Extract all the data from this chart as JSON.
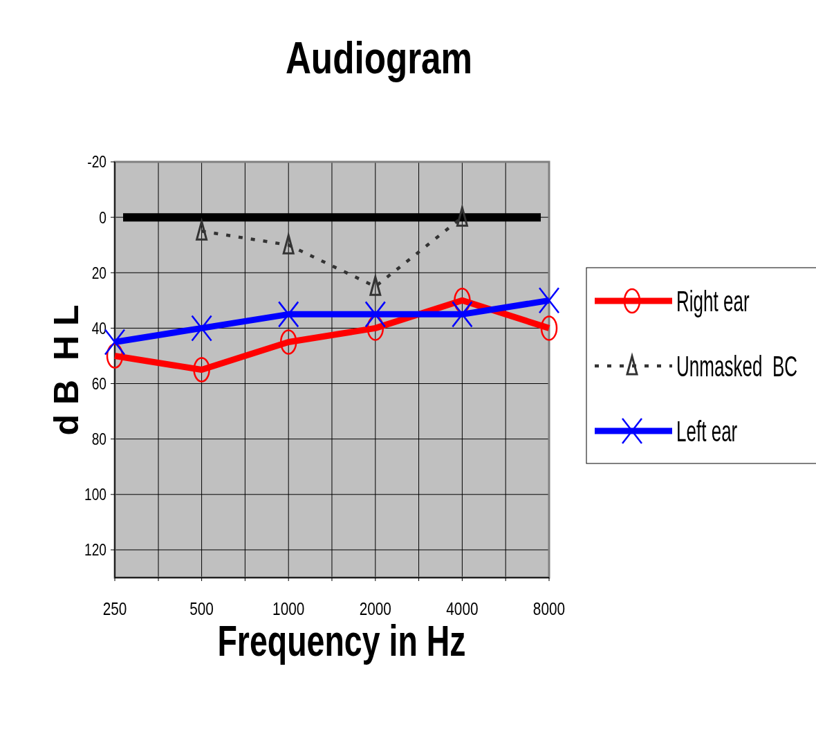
{
  "chart_data": {
    "type": "line",
    "title": "Audiogram",
    "xlabel": "Frequency in Hz",
    "ylabel": "d B  H L",
    "x": [
      250,
      500,
      1000,
      2000,
      4000,
      8000
    ],
    "log": "x",
    "xlim": [
      250,
      8000
    ],
    "xticks": [
      250,
      {
        "value": 354,
        "label": null
      },
      500,
      {
        "value": 707,
        "label": null
      },
      1000,
      {
        "value": 1414,
        "label": null
      },
      2000,
      {
        "value": 2828,
        "label": null
      },
      4000,
      {
        "value": 5657,
        "label": null
      },
      8000
    ],
    "ylim": [
      130,
      -20
    ],
    "yticks": [
      -20,
      0,
      20,
      40,
      60,
      80,
      100,
      120
    ],
    "grid": true,
    "legend": "right",
    "series": [
      {
        "name": "Right ear",
        "color": "#ff0000",
        "values": [
          50,
          55,
          45,
          40,
          30,
          40
        ],
        "marker": "circle",
        "line_style": "solid"
      },
      {
        "name": "Unmasked  BC",
        "color": "#333333",
        "values": [
          null,
          5,
          10,
          25,
          0,
          null
        ],
        "marker": "triangle",
        "line_style": "dotted"
      },
      {
        "name": "Left ear",
        "color": "#0000ff",
        "values": [
          45,
          40,
          35,
          35,
          35,
          30
        ],
        "marker": "cross",
        "line_style": "solid"
      }
    ],
    "ref_lines": [
      {
        "axis": "y",
        "value": 0,
        "label": null,
        "color": "#000000"
      }
    ]
  }
}
